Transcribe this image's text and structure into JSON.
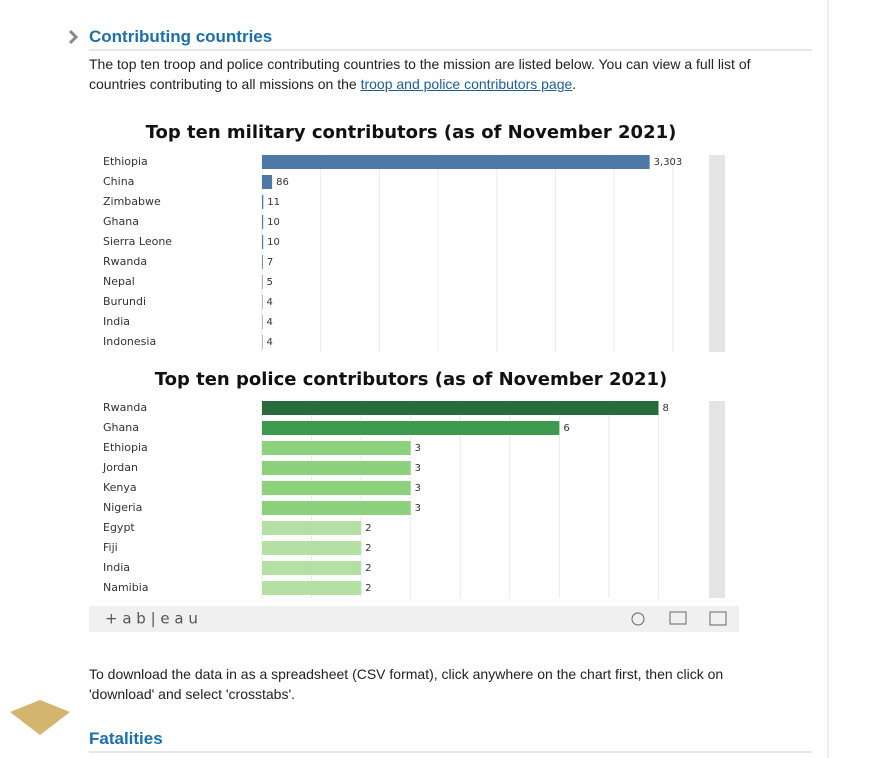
{
  "section": {
    "heading": "Contributing countries",
    "intro_lines": [
      "The top ten troop and police contributing countries to the mission are listed below. You can view a full list of",
      "countries contributing to all missions on the "
    ],
    "link": "troop and police contributors page",
    "intro_end": "."
  },
  "chart_data": [
    {
      "type": "bar",
      "orientation": "horizontal",
      "title": "Top ten military contributors (as of November 2021)",
      "categories": [
        "Ethiopia",
        "China",
        "Zimbabwe",
        "Ghana",
        "Sierra Leone",
        "Rwanda",
        "Nepal",
        "Burundi",
        "India",
        "Indonesia"
      ],
      "values": [
        3303,
        86,
        11,
        10,
        10,
        7,
        5,
        4,
        4,
        4
      ],
      "value_labels": [
        "3,303",
        "86",
        "11",
        "10",
        "10",
        "7",
        "5",
        "4",
        "4",
        "4"
      ],
      "color": "#4e79a7",
      "xlim": [
        0,
        3800
      ],
      "xticks": [
        0,
        500,
        1000,
        1500,
        2000,
        2500,
        3000,
        3500
      ],
      "grid": true
    },
    {
      "type": "bar",
      "orientation": "horizontal",
      "title": "Top ten police contributors (as of November 2021)",
      "categories": [
        "Rwanda",
        "Ghana",
        "Ethiopia",
        "Jordan",
        "Kenya",
        "Nigeria",
        "Egypt",
        "Fiji",
        "India",
        "Namibia"
      ],
      "values": [
        8,
        6,
        3,
        3,
        3,
        3,
        2,
        2,
        2,
        2
      ],
      "colors": [
        "#2a6b3e",
        "#3d9a50",
        "#8dd17c",
        "#8dd17c",
        "#8dd17c",
        "#8dd17c",
        "#b4e0a3",
        "#b4e0a3",
        "#b4e0a3",
        "#b4e0a3"
      ],
      "xlim": [
        0,
        9
      ],
      "xticks": [
        0,
        1,
        2,
        3,
        4,
        5,
        6,
        7,
        8
      ],
      "grid": true
    }
  ],
  "toolbar": {
    "brand": "+ a b | e a u"
  },
  "download_note": [
    "To download the data in as a spreadsheet (CSV format), click anywhere on the chart first, then click on",
    "'download' and select 'crosstabs'."
  ],
  "next_heading": "Fatalities"
}
